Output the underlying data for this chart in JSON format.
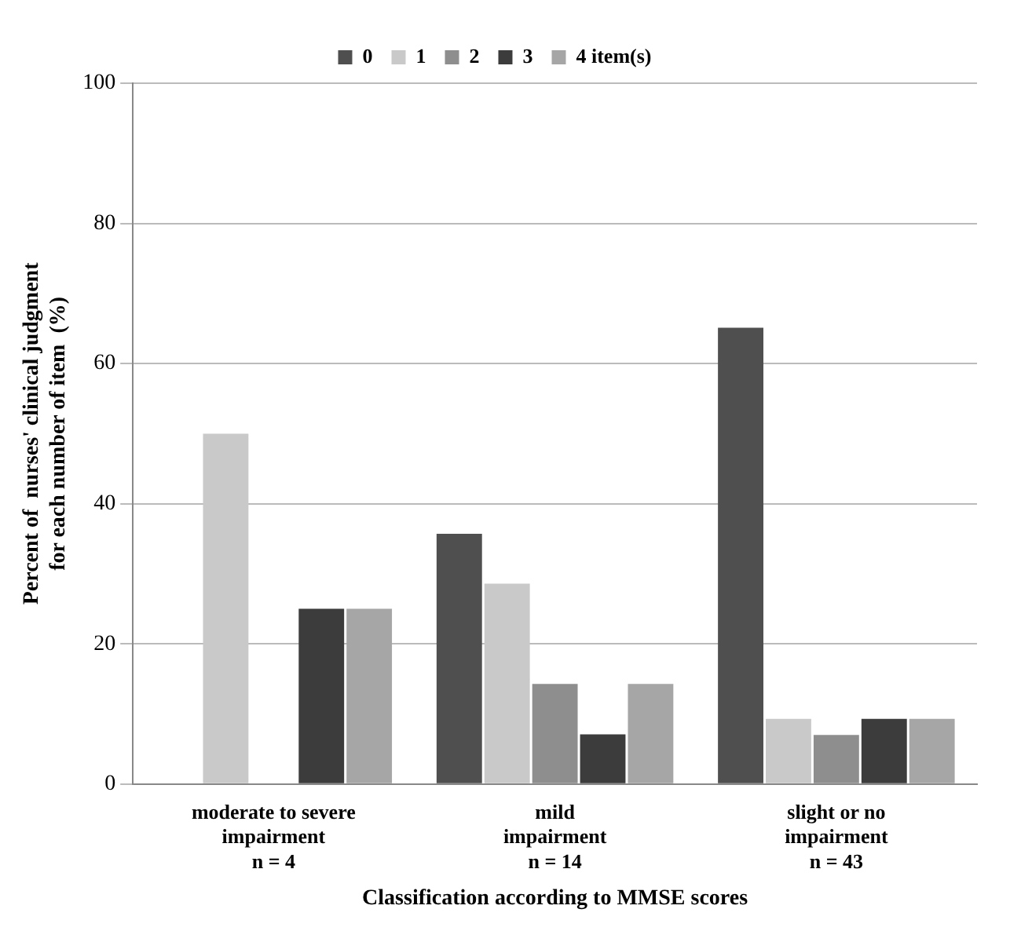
{
  "chart_data": {
    "type": "bar",
    "xlabel": "Classification according to MMSE scores",
    "ylabel": "Percent of  nurses' clinical judgment\nfor each number of item  (%)",
    "categories": [
      "moderate to severe\nimpairment\nn = 4",
      "mild\nimpairment\nn = 14",
      "slight or no\nimpairment\nn = 43"
    ],
    "series": [
      {
        "name": "0",
        "color": "#4f4f4f",
        "values": [
          0,
          35.7,
          65.1
        ]
      },
      {
        "name": "1",
        "color": "#c9c9c9",
        "values": [
          50,
          28.6,
          9.3
        ]
      },
      {
        "name": "2",
        "color": "#8e8e8e",
        "values": [
          0,
          14.3,
          7.0
        ]
      },
      {
        "name": "3",
        "color": "#3c3c3c",
        "values": [
          25,
          7.1,
          9.3
        ]
      },
      {
        "name": "4 item(s)",
        "color": "#a6a6a6",
        "values": [
          25,
          14.3,
          9.3
        ]
      }
    ],
    "ylim": [
      0,
      100
    ],
    "yticks": [
      0,
      20,
      40,
      60,
      80,
      100
    ],
    "grid": "y",
    "legend": "top"
  }
}
